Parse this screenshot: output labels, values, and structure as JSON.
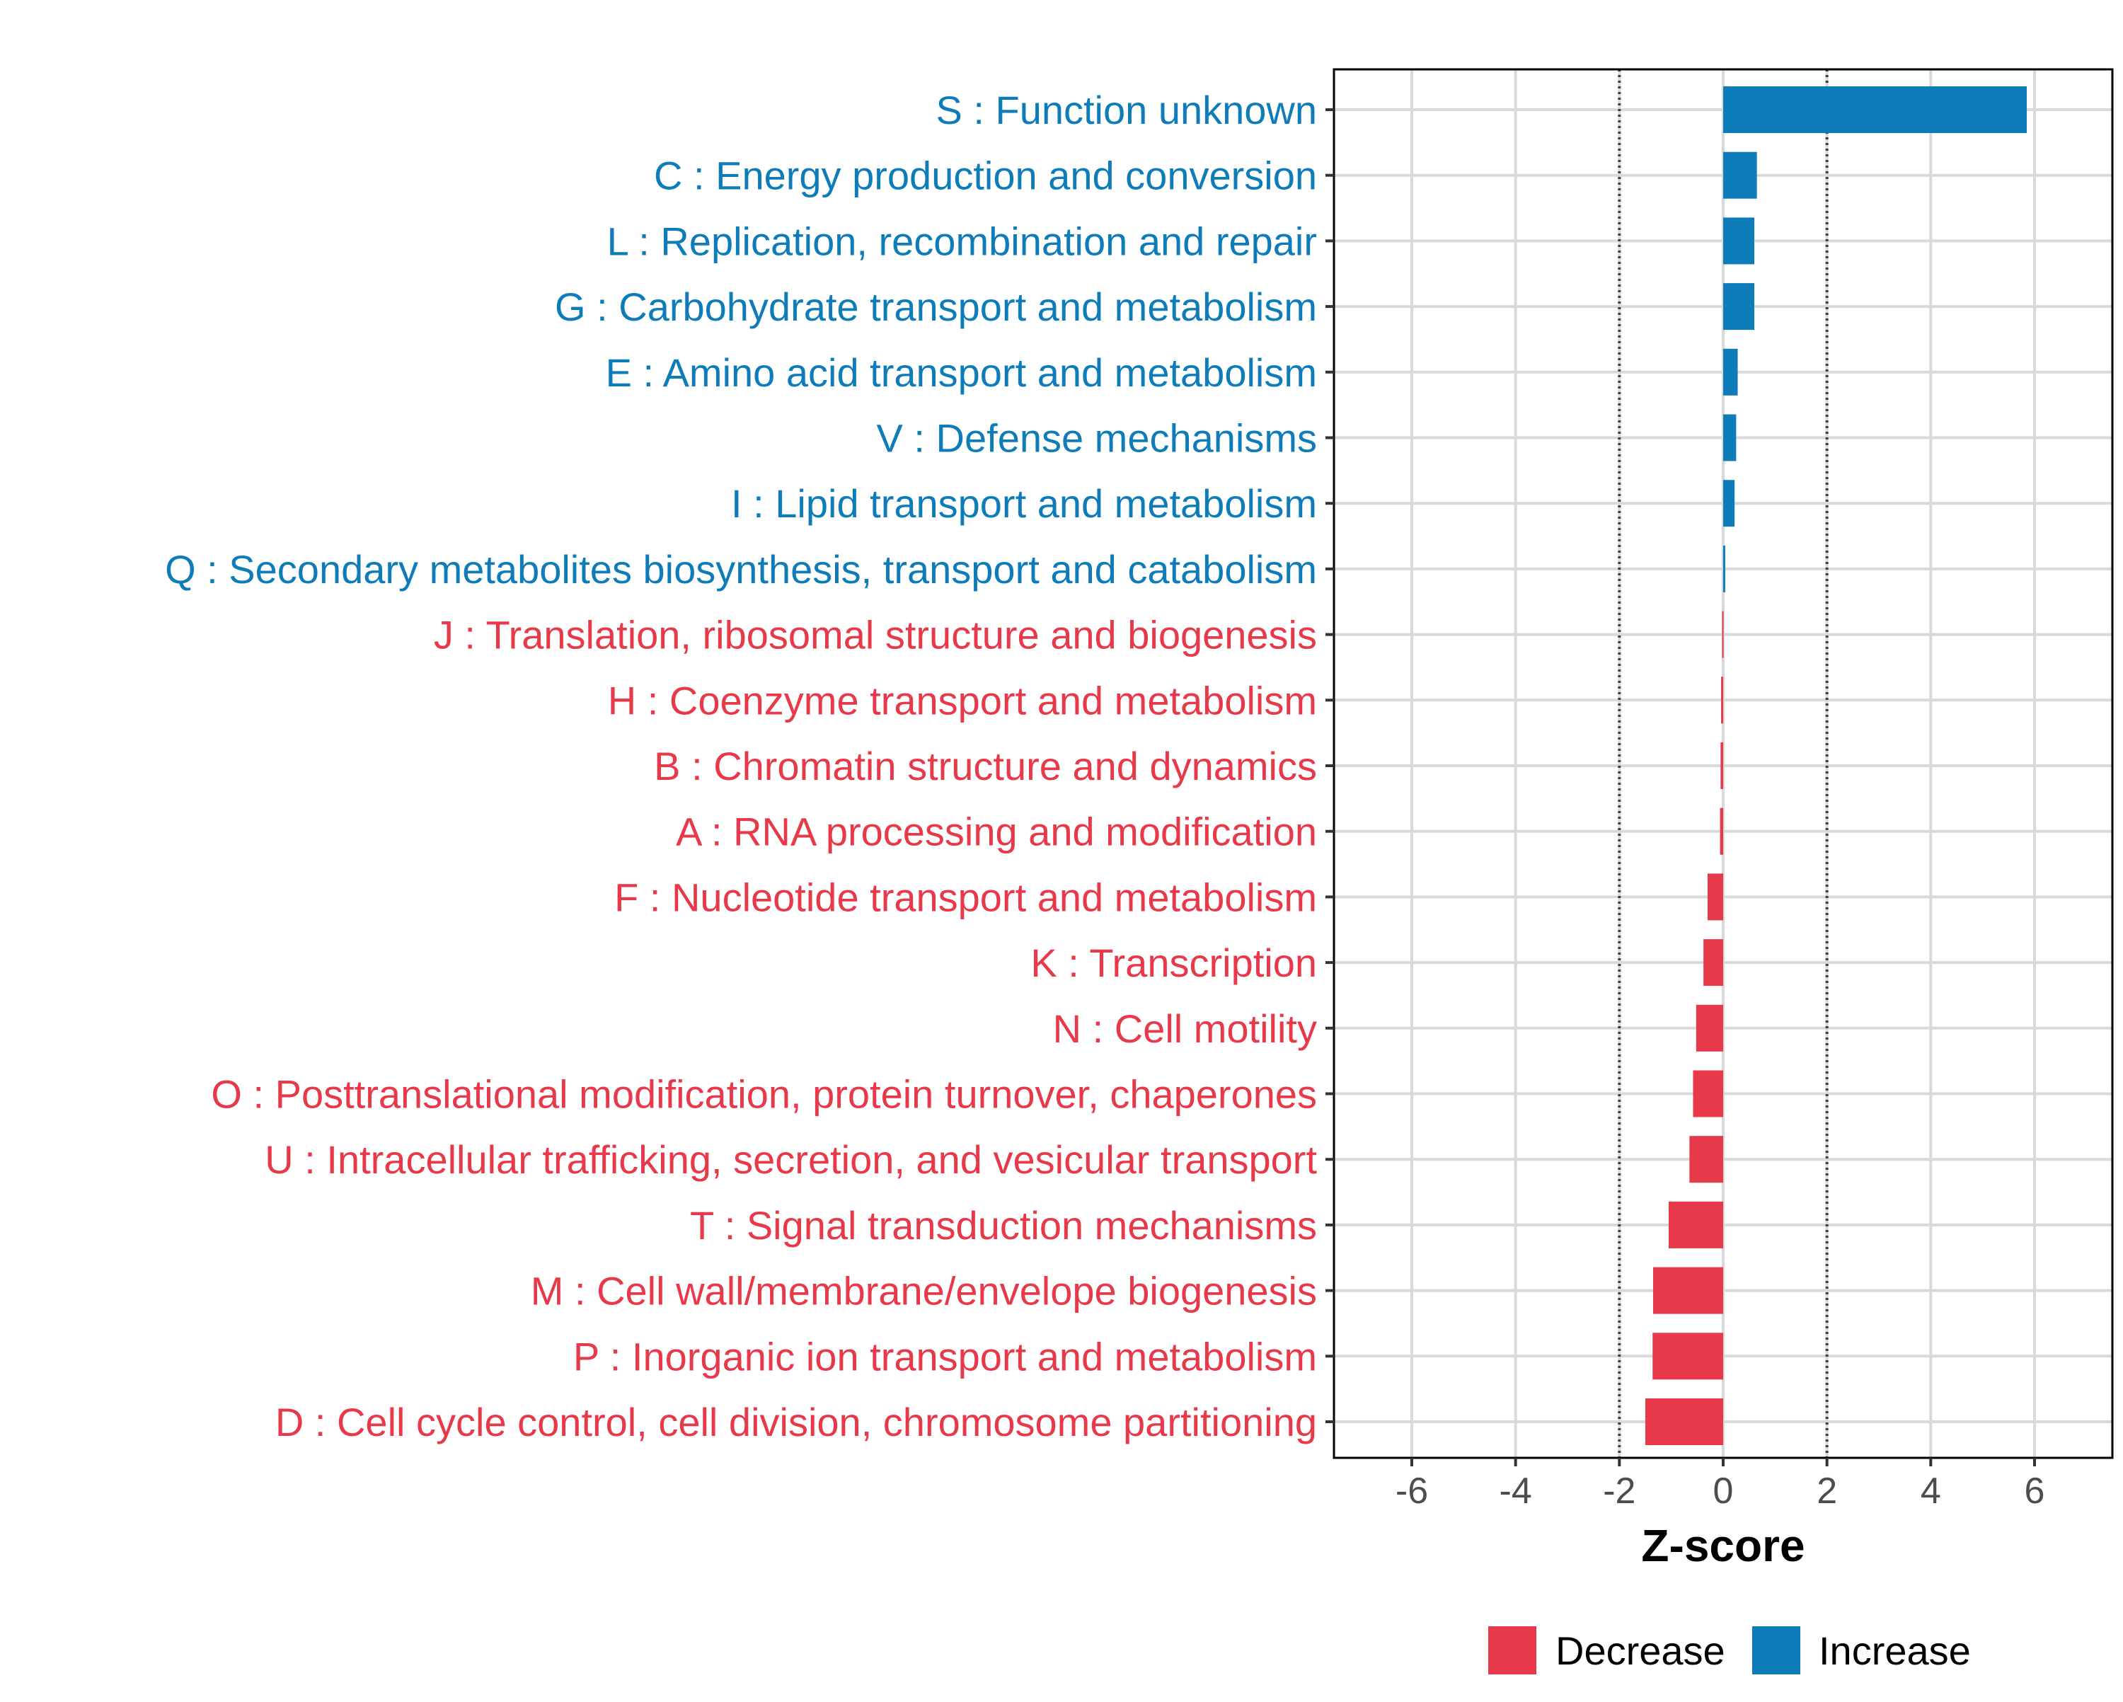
{
  "chart_data": {
    "type": "bar",
    "orientation": "horizontal",
    "title": "",
    "xlabel": "Z-score",
    "ylabel": "",
    "xlim": [
      -7.5,
      7.5
    ],
    "x_ticks": [
      -6,
      -4,
      -2,
      0,
      2,
      4,
      6
    ],
    "x_tick_labels": [
      "-6",
      "-4",
      "-2",
      "0",
      "2",
      "4",
      "6"
    ],
    "reference_lines": [
      -2,
      2
    ],
    "grid": true,
    "categories": [
      "S : Function unknown",
      "C : Energy production and conversion",
      "L : Replication, recombination and repair",
      "G : Carbohydrate transport and metabolism",
      "E : Amino acid transport and metabolism",
      "V : Defense mechanisms",
      "I : Lipid transport and metabolism",
      "Q : Secondary metabolites biosynthesis, transport and catabolism",
      "J : Translation, ribosomal structure and biogenesis",
      "H : Coenzyme transport and metabolism",
      "B : Chromatin structure and dynamics",
      "A : RNA processing and modification",
      "F : Nucleotide transport and metabolism",
      "K : Transcription",
      "N : Cell motility",
      "O : Posttranslational modification, protein turnover, chaperones",
      "U : Intracellular trafficking, secretion, and vesicular transport",
      "T : Signal transduction mechanisms",
      "M : Cell wall/membrane/envelope biogenesis",
      "P : Inorganic ion transport and metabolism",
      "D : Cell cycle control, cell division, chromosome partitioning"
    ],
    "values": [
      5.85,
      0.65,
      0.6,
      0.6,
      0.28,
      0.25,
      0.22,
      0.04,
      -0.02,
      -0.04,
      -0.05,
      -0.06,
      -0.3,
      -0.38,
      -0.52,
      -0.58,
      -0.65,
      -1.05,
      -1.35,
      -1.36,
      -1.5
    ],
    "groups": [
      "Increase",
      "Increase",
      "Increase",
      "Increase",
      "Increase",
      "Increase",
      "Increase",
      "Increase",
      "Decrease",
      "Decrease",
      "Decrease",
      "Decrease",
      "Decrease",
      "Decrease",
      "Decrease",
      "Decrease",
      "Decrease",
      "Decrease",
      "Decrease",
      "Decrease",
      "Decrease"
    ],
    "legend": {
      "position": "bottom",
      "entries": [
        {
          "name": "Decrease",
          "color": "#E8394A"
        },
        {
          "name": "Increase",
          "color": "#0F7CBA"
        }
      ]
    },
    "colors": {
      "Decrease": "#E8394A",
      "Increase": "#0F7CBA",
      "grid": "#d9d9d9",
      "reference_line": "#404040",
      "frame": "#000000"
    }
  }
}
